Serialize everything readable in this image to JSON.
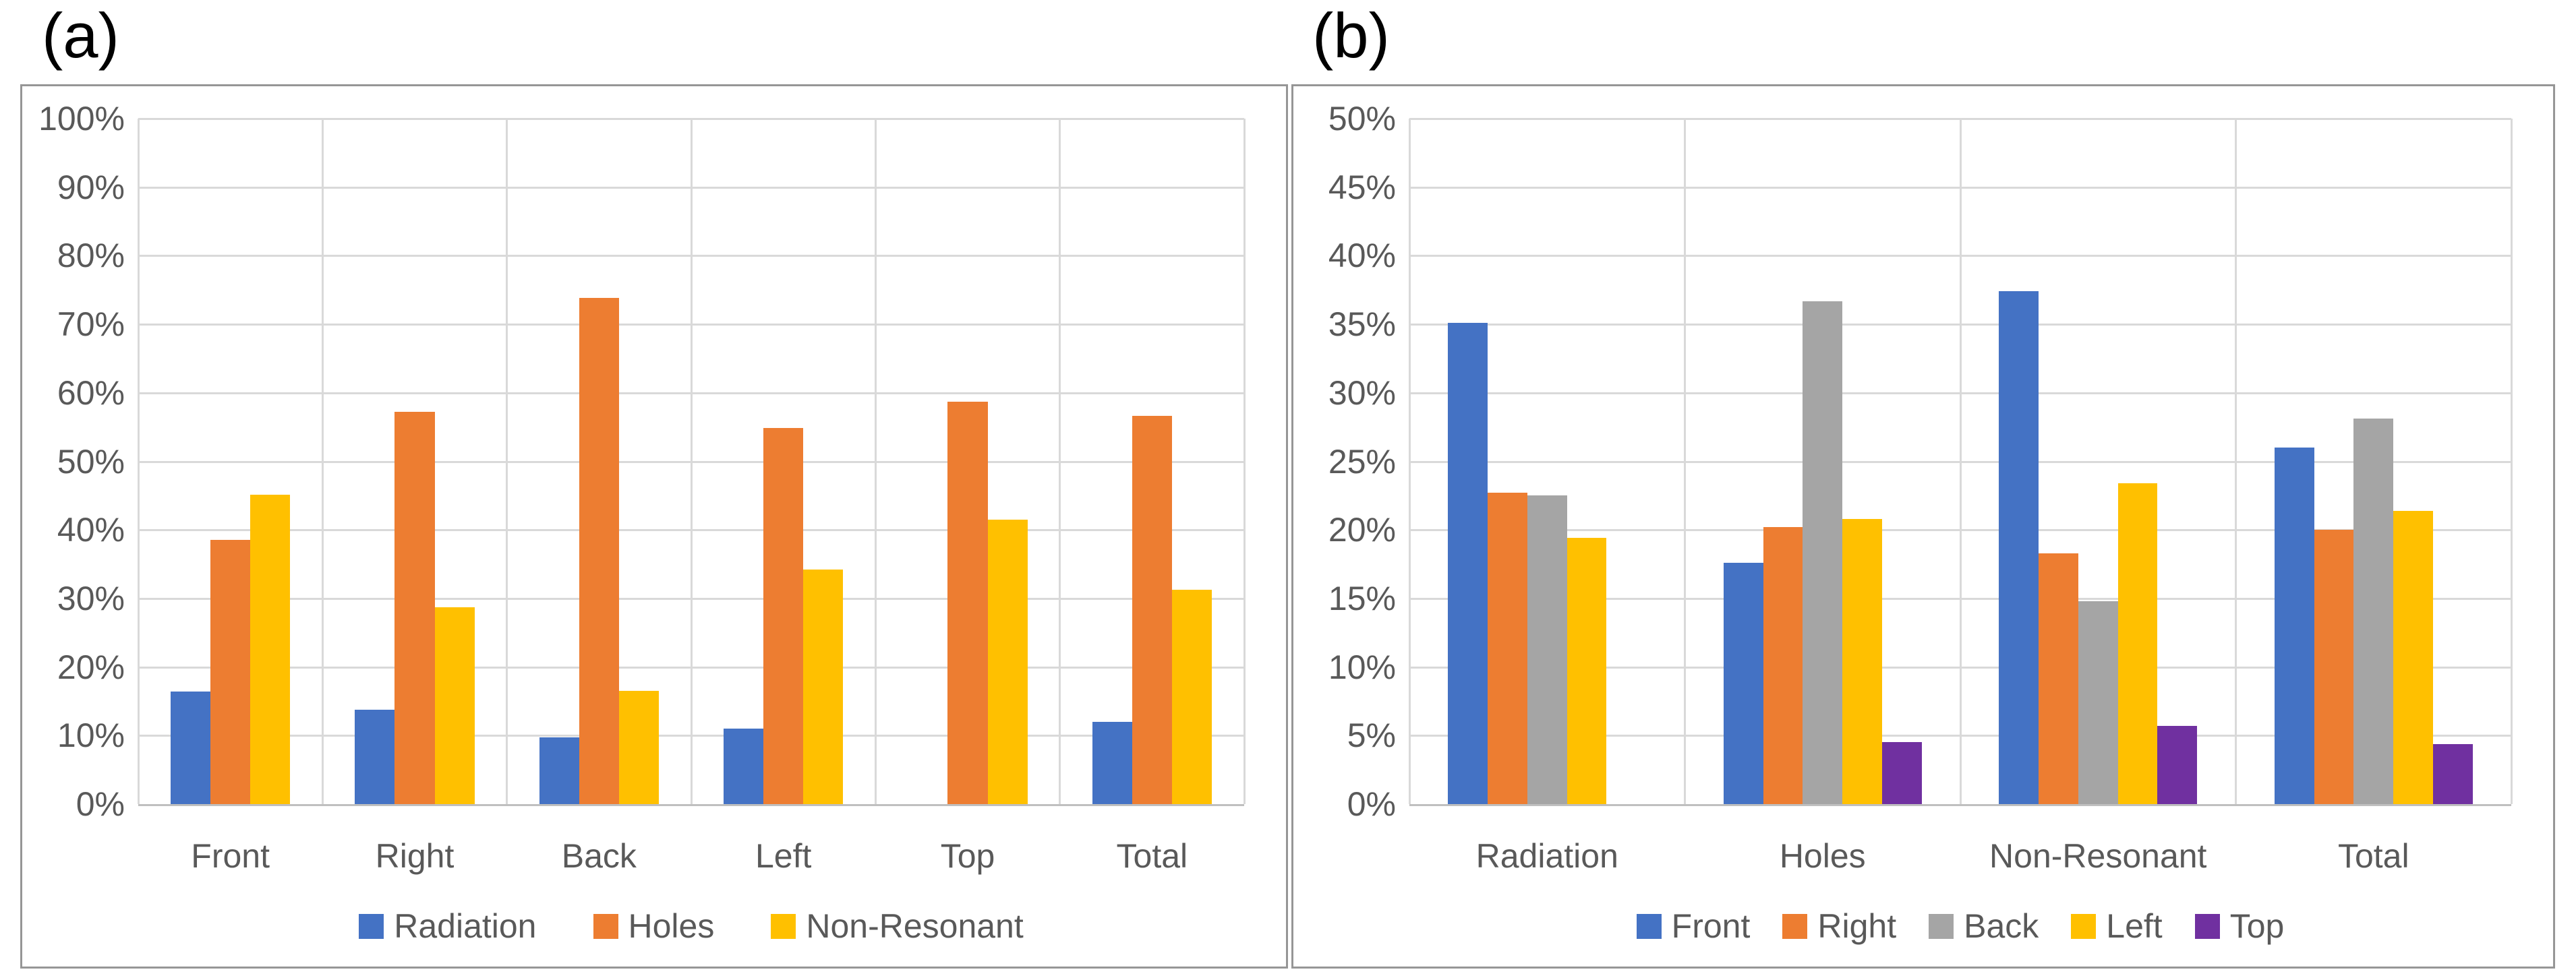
{
  "figure": {
    "background": "#ffffff",
    "text_color": "#595959",
    "grid_color": "#d9d9d9",
    "axis_color": "#bfbfbf",
    "panel_border_color": "#969696",
    "panel_label_color": "#000000"
  },
  "chart_data": [
    {
      "panel_label": "(a)",
      "type": "bar",
      "categories": [
        "Front",
        "Right",
        "Back",
        "Left",
        "Top",
        "Total"
      ],
      "series": [
        {
          "name": "Radiation",
          "color": "#4472C4",
          "values": [
            16.4,
            13.8,
            9.7,
            11.0,
            0,
            12.0
          ]
        },
        {
          "name": "Holes",
          "color": "#ED7D31",
          "values": [
            38.5,
            57.2,
            73.8,
            54.9,
            58.7,
            56.6
          ]
        },
        {
          "name": "Non-Resonant",
          "color": "#FFC000",
          "values": [
            45.1,
            28.7,
            16.5,
            34.2,
            41.5,
            31.3
          ]
        }
      ],
      "xlabel": "",
      "ylabel": "",
      "ylim": [
        0,
        100
      ],
      "ytick_values": [
        0,
        10,
        20,
        30,
        40,
        50,
        60,
        70,
        80,
        90,
        100
      ],
      "yticks": [
        "0%",
        "10%",
        "20%",
        "30%",
        "40%",
        "50%",
        "60%",
        "70%",
        "80%",
        "90%",
        "100%"
      ],
      "grid": true,
      "legend_position": "bottom",
      "group_fraction": 0.65
    },
    {
      "panel_label": "(b)",
      "type": "bar",
      "categories": [
        "Radiation",
        "Holes",
        "Non-Resonant",
        "Total"
      ],
      "series": [
        {
          "name": "Front",
          "color": "#4472C4",
          "values": [
            35.1,
            17.6,
            37.4,
            26.0
          ]
        },
        {
          "name": "Right",
          "color": "#ED7D31",
          "values": [
            22.7,
            20.2,
            18.3,
            20.0
          ]
        },
        {
          "name": "Back",
          "color": "#A5A5A5",
          "values": [
            22.5,
            36.7,
            14.8,
            28.1
          ]
        },
        {
          "name": "Left",
          "color": "#FFC000",
          "values": [
            19.4,
            20.8,
            23.4,
            21.4
          ]
        },
        {
          "name": "Top",
          "color": "#7030A0",
          "values": [
            0,
            4.5,
            5.7,
            4.4
          ]
        }
      ],
      "xlabel": "",
      "ylabel": "",
      "ylim": [
        0,
        50
      ],
      "ytick_values": [
        0,
        5,
        10,
        15,
        20,
        25,
        30,
        35,
        40,
        45,
        50
      ],
      "yticks": [
        "0%",
        "5%",
        "10%",
        "15%",
        "20%",
        "25%",
        "30%",
        "35%",
        "40%",
        "45%",
        "50%"
      ],
      "grid": true,
      "legend_position": "bottom",
      "group_fraction": 0.72
    }
  ]
}
